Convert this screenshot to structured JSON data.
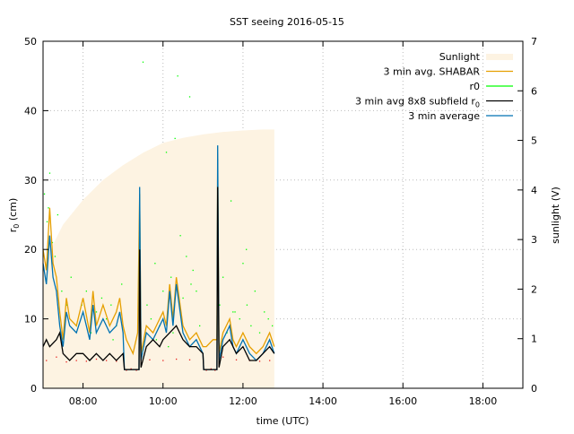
{
  "chart_data": {
    "type": "line",
    "title": "SST seeing 2016-05-15",
    "xlabel": "time (UTC)",
    "ylabel": "r",
    "ylabel_sub": "0",
    "ylabel_unit": " (cm)",
    "y2label": "sunlight (V)",
    "xlim": [
      "07:00",
      "19:00"
    ],
    "ylim": [
      0,
      50
    ],
    "y2lim": [
      0,
      7
    ],
    "xticks": [
      "08:00",
      "10:00",
      "12:00",
      "14:00",
      "16:00",
      "18:00"
    ],
    "yticks": [
      0,
      10,
      20,
      30,
      40,
      50
    ],
    "y2ticks": [
      0,
      1,
      2,
      3,
      4,
      5,
      6,
      7
    ],
    "grid": true,
    "legend_position": "top-right",
    "legend": [
      "Sunlight",
      "3 min avg. SHABAR",
      "r0",
      "3 min avg 8x8 subfield r",
      "3 min average"
    ],
    "legend_sub": "0",
    "colors": {
      "sunlight": "#fdf3e2",
      "shabar": "#e69f00",
      "r0": "#00ff00",
      "r0_low": "#e8201c",
      "subfield": "#000000",
      "average": "#0072b2"
    },
    "series": [
      {
        "name": "Sunlight",
        "axis": "y2",
        "style": "filled",
        "x": [
          "07:00",
          "07:15",
          "07:30",
          "08:00",
          "08:30",
          "09:00",
          "09:30",
          "10:00",
          "10:30",
          "11:00",
          "11:30",
          "12:00",
          "12:30",
          "12:47"
        ],
        "y": [
          2.4,
          2.9,
          3.3,
          3.8,
          4.2,
          4.5,
          4.75,
          4.95,
          5.05,
          5.12,
          5.17,
          5.2,
          5.22,
          5.22
        ]
      },
      {
        "name": "3 min avg. SHABAR",
        "axis": "y",
        "x": [
          "07:00",
          "07:05",
          "07:10",
          "07:15",
          "07:20",
          "07:25",
          "07:30",
          "07:35",
          "07:40",
          "07:50",
          "08:00",
          "08:10",
          "08:15",
          "08:20",
          "08:30",
          "08:40",
          "08:50",
          "08:55",
          "09:00",
          "09:05",
          "09:15",
          "09:22",
          "09:25",
          "09:27",
          "09:35",
          "09:45",
          "09:55",
          "10:00",
          "10:05",
          "10:10",
          "10:15",
          "10:20",
          "10:30",
          "10:40",
          "10:50",
          "11:00",
          "11:05",
          "11:15",
          "11:21",
          "11:22",
          "11:24",
          "11:30",
          "11:40",
          "11:45",
          "11:50",
          "12:00",
          "12:10",
          "12:20",
          "12:30",
          "12:40",
          "12:47"
        ],
        "y": [
          20,
          17,
          26,
          18,
          16,
          11,
          7,
          13,
          10,
          9,
          13,
          8,
          14,
          9,
          12,
          9,
          11,
          13,
          9,
          7,
          5,
          8,
          28,
          5,
          9,
          8,
          10,
          11,
          9,
          15,
          10,
          16,
          9,
          7,
          8,
          6,
          6,
          7,
          7,
          33,
          5,
          8,
          10,
          7,
          6,
          8,
          6,
          5,
          6,
          8,
          6
        ]
      },
      {
        "name": "3 min avg 8x8 subfield r0",
        "axis": "y",
        "x": [
          "07:00",
          "07:05",
          "07:10",
          "07:20",
          "07:25",
          "07:30",
          "07:40",
          "07:50",
          "08:00",
          "08:10",
          "08:20",
          "08:30",
          "08:40",
          "08:50",
          "09:00",
          "09:02",
          "09:24",
          "09:25",
          "09:27",
          "09:35",
          "09:45",
          "09:55",
          "10:00",
          "10:10",
          "10:20",
          "10:30",
          "10:40",
          "10:50",
          "11:00",
          "11:01",
          "11:21",
          "11:22",
          "11:24",
          "11:30",
          "11:40",
          "11:50",
          "12:00",
          "12:10",
          "12:20",
          "12:30",
          "12:40",
          "12:47"
        ],
        "y": [
          6,
          7,
          6,
          7,
          8,
          5,
          4,
          5,
          5,
          4,
          5,
          4,
          5,
          4,
          5,
          2.7,
          2.7,
          20,
          3,
          6,
          7,
          6,
          7,
          8,
          9,
          7,
          6,
          6,
          5,
          2.7,
          2.7,
          29,
          3,
          6,
          7,
          5,
          6,
          4,
          4,
          5,
          6,
          5
        ]
      },
      {
        "name": "3 min average",
        "axis": "y",
        "x": [
          "07:00",
          "07:05",
          "07:10",
          "07:15",
          "07:20",
          "07:25",
          "07:30",
          "07:35",
          "07:40",
          "07:50",
          "08:00",
          "08:10",
          "08:15",
          "08:20",
          "08:30",
          "08:40",
          "08:50",
          "08:55",
          "09:00",
          "09:02",
          "09:24",
          "09:25",
          "09:27",
          "09:35",
          "09:45",
          "09:55",
          "10:00",
          "10:05",
          "10:10",
          "10:15",
          "10:20",
          "10:30",
          "10:40",
          "10:50",
          "11:00",
          "11:01",
          "11:21",
          "11:22",
          "11:24",
          "11:30",
          "11:40",
          "11:45",
          "11:50",
          "12:00",
          "12:10",
          "12:20",
          "12:30",
          "12:40",
          "12:47"
        ],
        "y": [
          18,
          15,
          22,
          16,
          14,
          9,
          6,
          11,
          9,
          8,
          11,
          7,
          12,
          8,
          10,
          8,
          9,
          11,
          8,
          2.7,
          2.7,
          29,
          4,
          8,
          7,
          9,
          10,
          8,
          14,
          9,
          15,
          8,
          6,
          7,
          5,
          2.7,
          2.7,
          35,
          4,
          7,
          9,
          6,
          5,
          7,
          5,
          4,
          5,
          7,
          5
        ]
      },
      {
        "name": "r0",
        "axis": "y",
        "style": "points",
        "x": [
          "07:02",
          "07:06",
          "07:10",
          "07:14",
          "07:18",
          "07:22",
          "07:28",
          "07:35",
          "07:42",
          "07:50",
          "07:58",
          "08:05",
          "08:12",
          "08:20",
          "08:28",
          "08:35",
          "08:42",
          "08:50",
          "08:58",
          "09:30",
          "09:36",
          "09:42",
          "09:48",
          "09:55",
          "10:00",
          "10:05",
          "10:12",
          "10:18",
          "10:22",
          "10:26",
          "10:30",
          "10:35",
          "10:40",
          "10:45",
          "10:50",
          "10:55",
          "11:25",
          "11:30",
          "11:36",
          "11:42",
          "11:48",
          "11:55",
          "12:00",
          "12:06",
          "12:12",
          "12:18",
          "12:25",
          "12:32",
          "12:38",
          "12:44",
          "09:50",
          "10:15",
          "10:08",
          "07:08",
          "12:05",
          "11:45",
          "08:45",
          "10:42"
        ],
        "y": [
          28,
          24,
          31,
          21,
          19,
          25,
          14,
          12,
          16,
          9,
          12,
          14,
          8,
          11,
          13,
          10,
          12,
          9,
          15,
          47,
          12,
          10,
          18,
          9,
          14,
          34,
          16,
          36,
          45,
          22,
          13,
          19,
          42,
          17,
          14,
          9,
          12,
          16,
          8,
          27,
          11,
          10,
          18,
          12,
          9,
          14,
          8,
          11,
          10,
          9,
          7,
          8,
          6,
          26,
          20,
          11,
          7,
          15
        ]
      },
      {
        "name": "r0 low",
        "axis": "y",
        "style": "points",
        "x": [
          "07:05",
          "07:20",
          "07:35",
          "07:50",
          "08:05",
          "08:20",
          "08:35",
          "08:50",
          "09:05",
          "09:12",
          "09:20",
          "09:40",
          "10:00",
          "10:20",
          "10:40",
          "11:05",
          "11:12",
          "11:18",
          "11:30",
          "11:50",
          "12:10",
          "12:25",
          "12:40"
        ],
        "y": [
          4,
          4.5,
          3.8,
          4,
          3.9,
          4.2,
          4,
          3.9,
          2.6,
          2.8,
          2.6,
          4.1,
          4,
          4.2,
          4.1,
          2.6,
          2.8,
          2.6,
          4.5,
          4.1,
          4,
          3.9,
          4
        ]
      }
    ]
  }
}
